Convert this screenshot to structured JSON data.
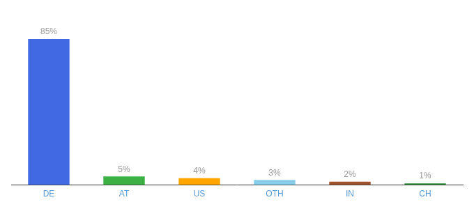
{
  "chart_data": {
    "type": "bar",
    "categories": [
      "DE",
      "AT",
      "US",
      "OTH",
      "IN",
      "CH"
    ],
    "values": [
      85,
      5,
      4,
      3,
      2,
      1
    ],
    "value_labels": [
      "85%",
      "5%",
      "4%",
      "3%",
      "2%",
      "1%"
    ],
    "colors": [
      "#4169e1",
      "#3cb043",
      "#ffa500",
      "#87ceeb",
      "#a0522d",
      "#2e8b3a"
    ],
    "ylim": [
      0,
      98
    ],
    "grid": false,
    "data_labels": true,
    "tick_labels": "x"
  }
}
